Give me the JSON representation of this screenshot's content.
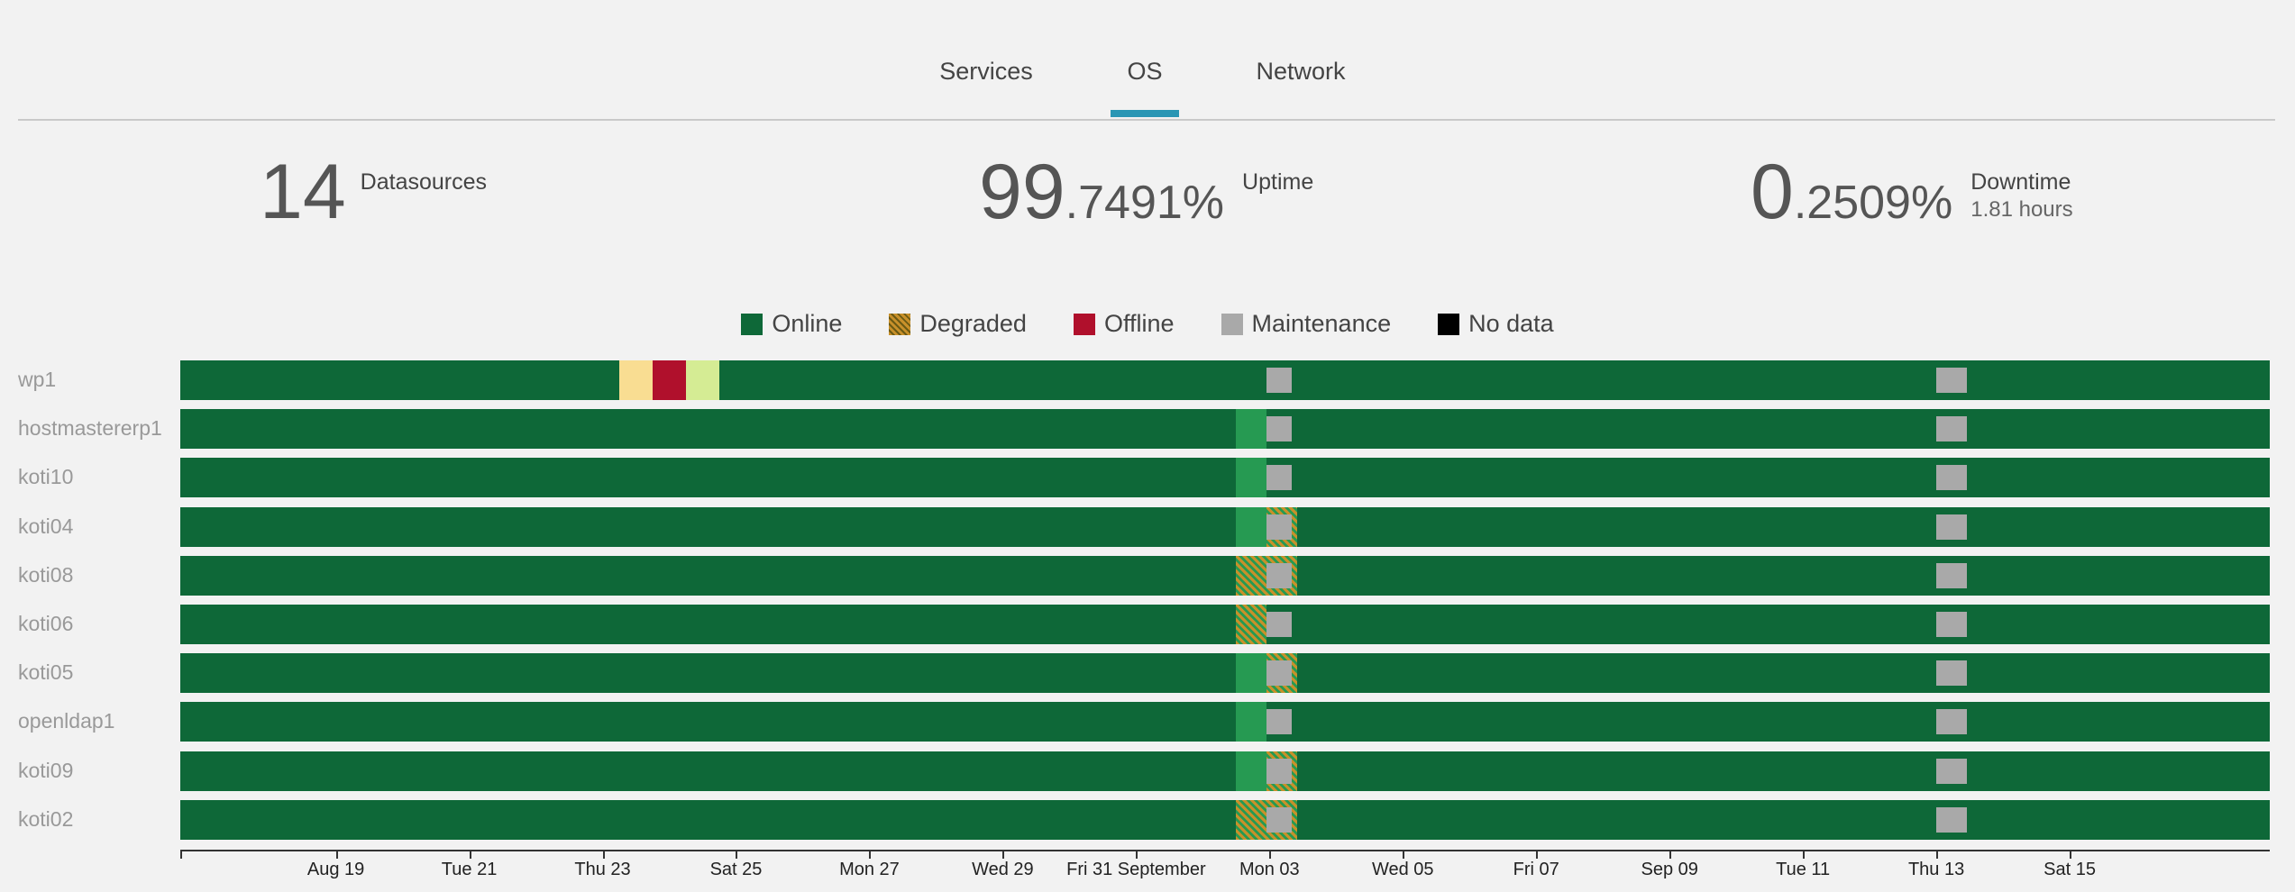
{
  "tabs": [
    {
      "label": "Services",
      "active": false
    },
    {
      "label": "OS",
      "active": true
    },
    {
      "label": "Network",
      "active": false
    }
  ],
  "stats": {
    "datasources": {
      "value": "14",
      "label": "Datasources"
    },
    "uptime": {
      "int": "99",
      "frac": ".7491%",
      "label": "Uptime"
    },
    "downtime": {
      "int": "0",
      "frac": ".2509%",
      "label": "Downtime",
      "sub": "1.81 hours"
    }
  },
  "legend": [
    {
      "label": "Online",
      "color": "#0e6838"
    },
    {
      "label": "Degraded",
      "color": "#c8902a",
      "pattern": "hatched"
    },
    {
      "label": "Offline",
      "color": "#b0102c"
    },
    {
      "label": "Maintenance",
      "color": "#a9a9a9"
    },
    {
      "label": "No data",
      "color": "#000000"
    }
  ],
  "colors": {
    "accent": "#2a96b4",
    "online": "#0e6838",
    "light_online": "#269a52",
    "pending": "#f9dd92",
    "offline": "#b0102c",
    "recovering": "#d5ec94",
    "maintenance": "#a9a9a9",
    "degraded": "#c8902a"
  },
  "chart_data": {
    "type": "timeline",
    "x_tick_labels": [
      "Aug 19",
      "Tue 21",
      "Thu 23",
      "Sat 25",
      "Mon 27",
      "Wed 29",
      "Fri 31 September",
      "Mon 03",
      "Wed 05",
      "Fri 07",
      "Sep 09",
      "Tue 11",
      "Thu 13",
      "Sat 15"
    ],
    "hosts": [
      {
        "name": "wp1",
        "events": [
          {
            "state": "pending",
            "start": "Aug 23 06:00",
            "end": "Aug 23 18:00"
          },
          {
            "state": "offline",
            "start": "Aug 23 18:00",
            "end": "Aug 24 06:00"
          },
          {
            "state": "recovering",
            "start": "Aug 24 06:00",
            "end": "Aug 24 18:00"
          },
          {
            "state": "maintenance",
            "start": "Sep 01 23:00",
            "end": "Sep 02 08:00"
          },
          {
            "state": "maintenance",
            "start": "Sep 12 00:00",
            "end": "Sep 12 11:00"
          }
        ]
      },
      {
        "name": "hostmastererp1",
        "events": [
          {
            "state": "light_online",
            "start": "Sep 01 12:00",
            "end": "Sep 01 23:00"
          },
          {
            "state": "maintenance",
            "start": "Sep 01 23:00",
            "end": "Sep 02 08:00"
          },
          {
            "state": "maintenance",
            "start": "Sep 12 00:00",
            "end": "Sep 12 11:00"
          }
        ]
      },
      {
        "name": "koti10",
        "events": [
          {
            "state": "light_online",
            "start": "Sep 01 12:00",
            "end": "Sep 01 23:00"
          },
          {
            "state": "maintenance",
            "start": "Sep 01 23:00",
            "end": "Sep 02 08:00"
          },
          {
            "state": "maintenance",
            "start": "Sep 12 00:00",
            "end": "Sep 12 11:00"
          }
        ]
      },
      {
        "name": "koti04",
        "events": [
          {
            "state": "light_online",
            "start": "Sep 01 12:00",
            "end": "Sep 01 23:00"
          },
          {
            "state": "degraded",
            "start": "Sep 01 23:00",
            "end": "Sep 02 10:00"
          },
          {
            "state": "maintenance",
            "start": "Sep 01 23:00",
            "end": "Sep 02 08:00"
          },
          {
            "state": "maintenance",
            "start": "Sep 12 00:00",
            "end": "Sep 12 11:00"
          }
        ]
      },
      {
        "name": "koti08",
        "events": [
          {
            "state": "degraded",
            "start": "Sep 01 12:00",
            "end": "Sep 02 10:00"
          },
          {
            "state": "maintenance",
            "start": "Sep 01 23:00",
            "end": "Sep 02 08:00"
          },
          {
            "state": "maintenance",
            "start": "Sep 12 00:00",
            "end": "Sep 12 11:00"
          }
        ]
      },
      {
        "name": "koti06",
        "events": [
          {
            "state": "degraded",
            "start": "Sep 01 12:00",
            "end": "Sep 01 23:00"
          },
          {
            "state": "maintenance",
            "start": "Sep 01 23:00",
            "end": "Sep 02 08:00"
          },
          {
            "state": "maintenance",
            "start": "Sep 12 00:00",
            "end": "Sep 12 11:00"
          }
        ]
      },
      {
        "name": "koti05",
        "events": [
          {
            "state": "light_online",
            "start": "Sep 01 12:00",
            "end": "Sep 01 23:00"
          },
          {
            "state": "degraded",
            "start": "Sep 01 23:00",
            "end": "Sep 02 10:00"
          },
          {
            "state": "maintenance",
            "start": "Sep 01 23:00",
            "end": "Sep 02 08:00"
          },
          {
            "state": "maintenance",
            "start": "Sep 12 00:00",
            "end": "Sep 12 11:00"
          }
        ]
      },
      {
        "name": "openldap1",
        "events": [
          {
            "state": "light_online",
            "start": "Sep 01 12:00",
            "end": "Sep 01 23:00"
          },
          {
            "state": "maintenance",
            "start": "Sep 01 23:00",
            "end": "Sep 02 08:00"
          },
          {
            "state": "maintenance",
            "start": "Sep 12 00:00",
            "end": "Sep 12 11:00"
          }
        ]
      },
      {
        "name": "koti09",
        "events": [
          {
            "state": "light_online",
            "start": "Sep 01 12:00",
            "end": "Sep 01 23:00"
          },
          {
            "state": "degraded",
            "start": "Sep 01 23:00",
            "end": "Sep 02 10:00"
          },
          {
            "state": "maintenance",
            "start": "Sep 01 23:00",
            "end": "Sep 02 08:00"
          },
          {
            "state": "maintenance",
            "start": "Sep 12 00:00",
            "end": "Sep 12 11:00"
          }
        ]
      },
      {
        "name": "koti02",
        "events": [
          {
            "state": "degraded",
            "start": "Sep 01 12:00",
            "end": "Sep 02 10:00"
          },
          {
            "state": "maintenance",
            "start": "Sep 01 23:00",
            "end": "Sep 02 08:00"
          },
          {
            "state": "maintenance",
            "start": "Sep 12 00:00",
            "end": "Sep 12 11:00"
          }
        ]
      }
    ]
  }
}
